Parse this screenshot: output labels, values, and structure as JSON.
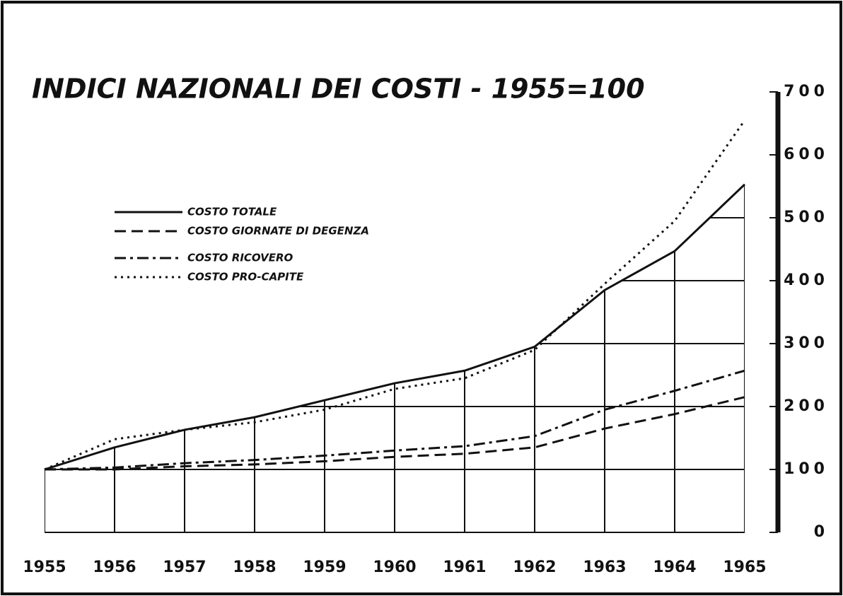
{
  "chart_data": {
    "type": "line",
    "title": "INDICI NAZIONALI DEI COSTI - 1955=100",
    "x": [
      1955,
      1956,
      1957,
      1958,
      1959,
      1960,
      1961,
      1962,
      1963,
      1964,
      1965
    ],
    "xlim": [
      1955,
      1965
    ],
    "xticks": [
      1955,
      1956,
      1957,
      1958,
      1959,
      1960,
      1961,
      1962,
      1963,
      1964,
      1965
    ],
    "ylim": [
      0,
      700
    ],
    "yticks": [
      0,
      100,
      200,
      300,
      400,
      500,
      600,
      700
    ],
    "grid": true,
    "legend": "upper left",
    "series": [
      {
        "name": "COSTO TOTALE",
        "color": "#111111",
        "dash": "solid",
        "values": [
          100,
          135,
          163,
          183,
          210,
          237,
          257,
          295,
          385,
          447,
          553
        ]
      },
      {
        "name": "COSTO GIORNATE DI DEGENZA",
        "color": "#111111",
        "dash": "dashed",
        "values": [
          100,
          100,
          105,
          108,
          113,
          120,
          125,
          135,
          165,
          188,
          215
        ]
      },
      {
        "name": "COSTO RICOVERO",
        "color": "#111111",
        "dash": "dashdot",
        "values": [
          100,
          103,
          110,
          115,
          122,
          130,
          137,
          153,
          195,
          225,
          257
        ]
      },
      {
        "name": "COSTO PRO-CAPITE",
        "color": "#111111",
        "dash": "dotted",
        "values": [
          100,
          148,
          163,
          175,
          195,
          228,
          245,
          290,
          395,
          495,
          655
        ]
      }
    ]
  }
}
